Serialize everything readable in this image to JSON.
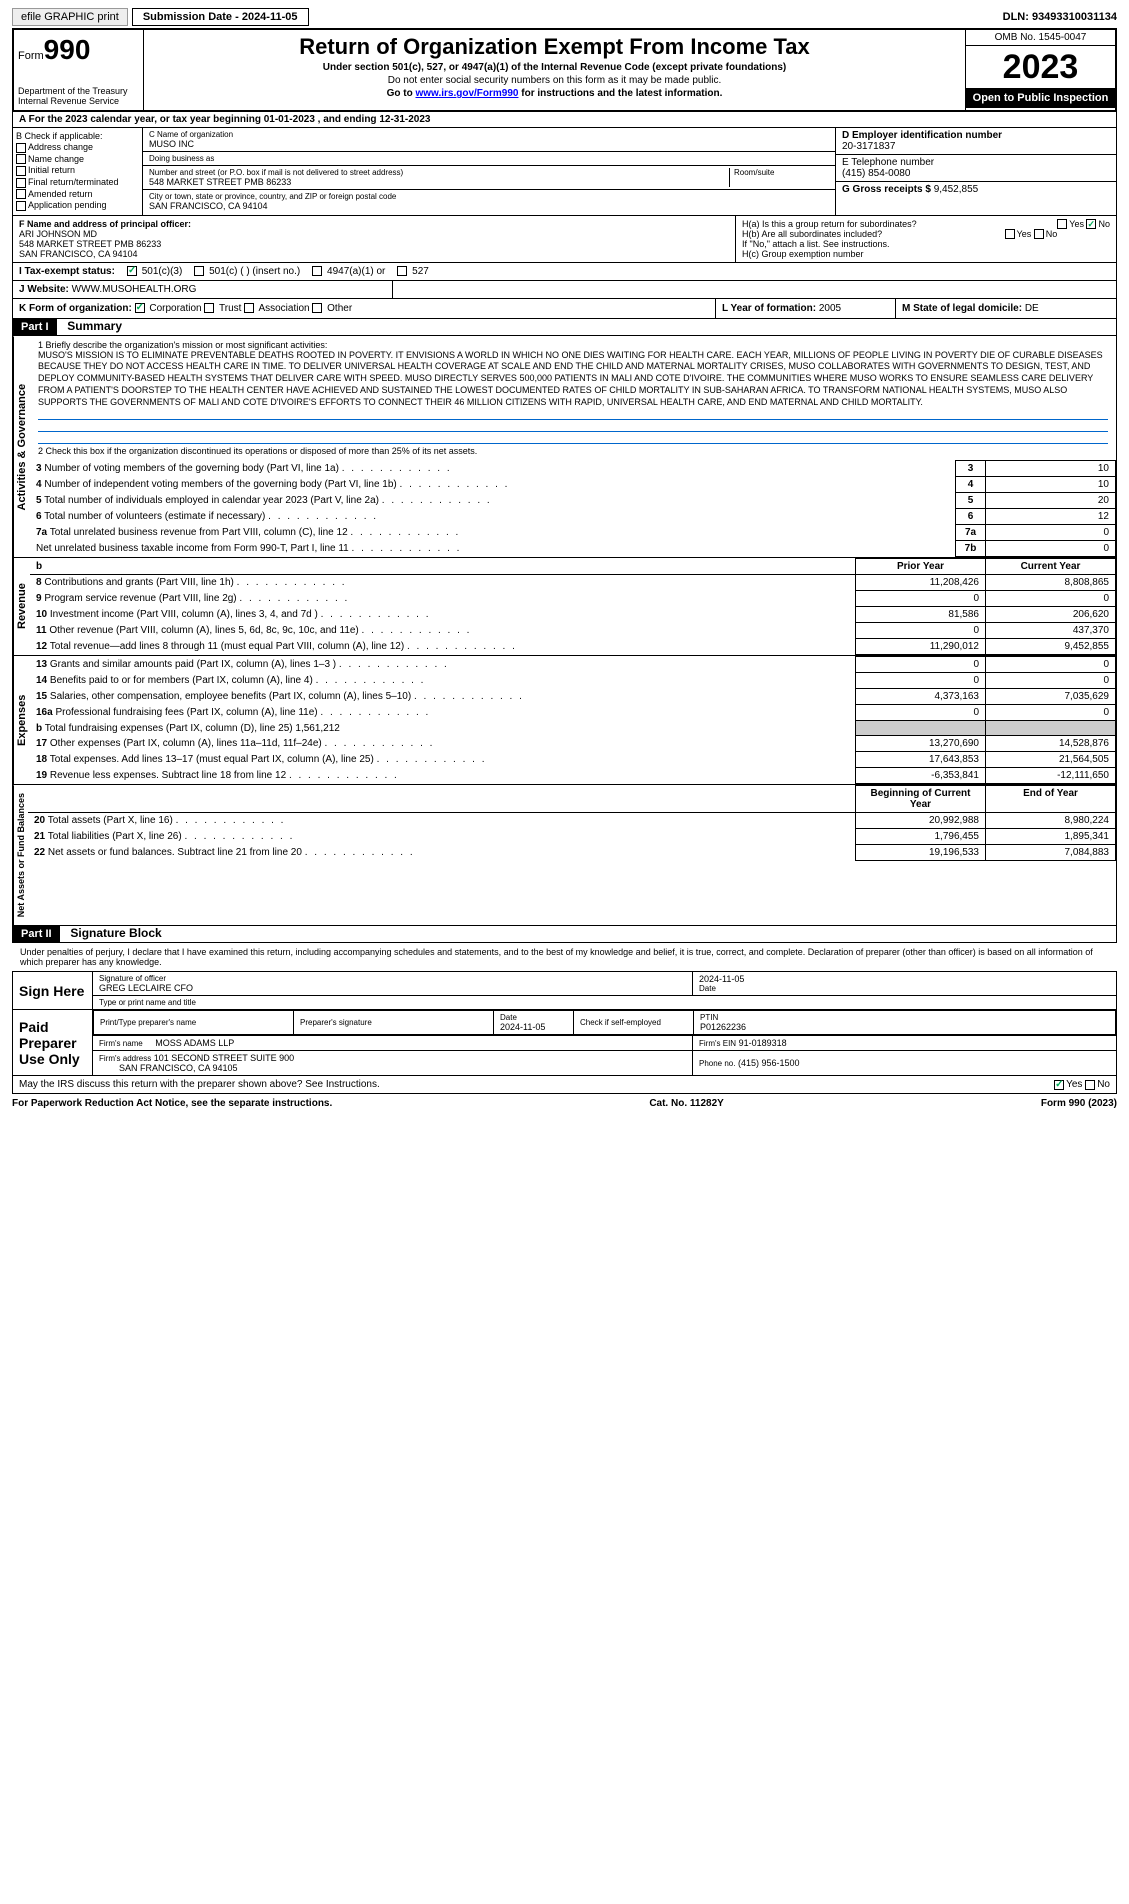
{
  "topbar": {
    "print_label": "efile GRAPHIC print",
    "submission": "Submission Date - 2024-11-05",
    "dln": "DLN: 93493310031134"
  },
  "header": {
    "form_prefix": "Form",
    "form_number": "990",
    "dept": "Department of the Treasury Internal Revenue Service",
    "title": "Return of Organization Exempt From Income Tax",
    "subtitle": "Under section 501(c), 527, or 4947(a)(1) of the Internal Revenue Code (except private foundations)",
    "note1": "Do not enter social security numbers on this form as it may be made public.",
    "note2_prefix": "Go to ",
    "note2_link": "www.irs.gov/Form990",
    "note2_suffix": " for instructions and the latest information.",
    "omb": "OMB No. 1545-0047",
    "year": "2023",
    "open_pub": "Open to Public Inspection"
  },
  "cal_year": "A For the 2023 calendar year, or tax year beginning 01-01-2023   , and ending 12-31-2023",
  "box_b": {
    "title": "B Check if applicable:",
    "items": [
      "Address change",
      "Name change",
      "Initial return",
      "Final return/terminated",
      "Amended return",
      "Application pending"
    ]
  },
  "box_c": {
    "name_lbl": "C Name of organization",
    "name": "MUSO INC",
    "dba_lbl": "Doing business as",
    "dba": "",
    "street_lbl": "Number and street (or P.O. box if mail is not delivered to street address)",
    "street": "548 MARKET STREET PMB 86233",
    "room_lbl": "Room/suite",
    "city_lbl": "City or town, state or province, country, and ZIP or foreign postal code",
    "city": "SAN FRANCISCO, CA  94104"
  },
  "box_d": {
    "lbl": "D Employer identification number",
    "val": "20-3171837"
  },
  "box_e": {
    "lbl": "E Telephone number",
    "val": "(415) 854-0080"
  },
  "box_g": {
    "lbl": "G Gross receipts $",
    "val": "9,452,855"
  },
  "officer": {
    "lbl": "F Name and address of principal officer:",
    "name": "ARI JOHNSON MD",
    "addr1": "548 MARKET STREET PMB 86233",
    "addr2": "SAN FRANCISCO, CA  94104"
  },
  "box_h": {
    "h_a": "H(a) Is this a group return for subordinates?",
    "h_b": "H(b) Are all subordinates included?",
    "h_note": "If \"No,\" attach a list. See instructions.",
    "h_c": "H(c) Group exemption number"
  },
  "tax_status": {
    "lbl": "I   Tax-exempt status:",
    "opts": [
      "501(c)(3)",
      "501(c) (  ) (insert no.)",
      "4947(a)(1) or",
      "527"
    ]
  },
  "website": {
    "lbl": "J   Website:",
    "val": "WWW.MUSOHEALTH.ORG"
  },
  "form_org": {
    "lbl": "K Form of organization:",
    "opts": [
      "Corporation",
      "Trust",
      "Association",
      "Other"
    ],
    "year_lbl": "L Year of formation:",
    "year_val": "2005",
    "state_lbl": "M State of legal domicile:",
    "state_val": "DE"
  },
  "part1": {
    "hdr": "Part I",
    "title": "Summary",
    "line1_lbl": "1   Briefly describe the organization's mission or most significant activities:",
    "mission": "MUSO'S MISSION IS TO ELIMINATE PREVENTABLE DEATHS ROOTED IN POVERTY. IT ENVISIONS A WORLD IN WHICH NO ONE DIES WAITING FOR HEALTH CARE. EACH YEAR, MILLIONS OF PEOPLE LIVING IN POVERTY DIE OF CURABLE DISEASES BECAUSE THEY DO NOT ACCESS HEALTH CARE IN TIME. TO DELIVER UNIVERSAL HEALTH COVERAGE AT SCALE AND END THE CHILD AND MATERNAL MORTALITY CRISES, MUSO COLLABORATES WITH GOVERNMENTS TO DESIGN, TEST, AND DEPLOY COMMUNITY-BASED HEALTH SYSTEMS THAT DELIVER CARE WITH SPEED. MUSO DIRECTLY SERVES 500,000 PATIENTS IN MALI AND COTE D'IVOIRE. THE COMMUNITIES WHERE MUSO WORKS TO ENSURE SEAMLESS CARE DELIVERY FROM A PATIENT'S DOORSTEP TO THE HEALTH CENTER HAVE ACHIEVED AND SUSTAINED THE LOWEST DOCUMENTED RATES OF CHILD MORTALITY IN SUB-SAHARAN AFRICA. TO TRANSFORM NATIONAL HEALTH SYSTEMS, MUSO ALSO SUPPORTS THE GOVERNMENTS OF MALI AND COTE D'IVOIRE'S EFFORTS TO CONNECT THEIR 46 MILLION CITIZENS WITH RAPID, UNIVERSAL HEALTH CARE, AND END MATERNAL AND CHILD MORTALITY.",
    "line2": "2   Check this box      if the organization discontinued its operations or disposed of more than 25% of its net assets.",
    "vert1": "Activities & Governance",
    "vert2": "Revenue",
    "vert3": "Expenses",
    "vert4": "Net Assets or Fund Balances",
    "rows_gov": [
      {
        "n": "3",
        "d": "Number of voting members of the governing body (Part VI, line 1a)",
        "c": "3",
        "v": "10"
      },
      {
        "n": "4",
        "d": "Number of independent voting members of the governing body (Part VI, line 1b)",
        "c": "4",
        "v": "10"
      },
      {
        "n": "5",
        "d": "Total number of individuals employed in calendar year 2023 (Part V, line 2a)",
        "c": "5",
        "v": "20"
      },
      {
        "n": "6",
        "d": "Total number of volunteers (estimate if necessary)",
        "c": "6",
        "v": "12"
      },
      {
        "n": "7a",
        "d": "Total unrelated business revenue from Part VIII, column (C), line 12",
        "c": "7a",
        "v": "0"
      },
      {
        "n": "",
        "d": "Net unrelated business taxable income from Form 990-T, Part I, line 11",
        "c": "7b",
        "v": "0"
      }
    ],
    "hdr_prior": "Prior Year",
    "hdr_current": "Current Year",
    "rows_rev": [
      {
        "n": "8",
        "d": "Contributions and grants (Part VIII, line 1h)",
        "p": "11,208,426",
        "c": "8,808,865"
      },
      {
        "n": "9",
        "d": "Program service revenue (Part VIII, line 2g)",
        "p": "0",
        "c": "0"
      },
      {
        "n": "10",
        "d": "Investment income (Part VIII, column (A), lines 3, 4, and 7d )",
        "p": "81,586",
        "c": "206,620"
      },
      {
        "n": "11",
        "d": "Other revenue (Part VIII, column (A), lines 5, 6d, 8c, 9c, 10c, and 11e)",
        "p": "0",
        "c": "437,370"
      },
      {
        "n": "12",
        "d": "Total revenue—add lines 8 through 11 (must equal Part VIII, column (A), line 12)",
        "p": "11,290,012",
        "c": "9,452,855"
      }
    ],
    "rows_exp": [
      {
        "n": "13",
        "d": "Grants and similar amounts paid (Part IX, column (A), lines 1–3 )",
        "p": "0",
        "c": "0"
      },
      {
        "n": "14",
        "d": "Benefits paid to or for members (Part IX, column (A), line 4)",
        "p": "0",
        "c": "0"
      },
      {
        "n": "15",
        "d": "Salaries, other compensation, employee benefits (Part IX, column (A), lines 5–10)",
        "p": "4,373,163",
        "c": "7,035,629"
      },
      {
        "n": "16a",
        "d": "Professional fundraising fees (Part IX, column (A), line 11e)",
        "p": "0",
        "c": "0"
      },
      {
        "n": "b",
        "d": "Total fundraising expenses (Part IX, column (D), line 25) 1,561,212",
        "p": "",
        "c": "",
        "shade": true
      },
      {
        "n": "17",
        "d": "Other expenses (Part IX, column (A), lines 11a–11d, 11f–24e)",
        "p": "13,270,690",
        "c": "14,528,876"
      },
      {
        "n": "18",
        "d": "Total expenses. Add lines 13–17 (must equal Part IX, column (A), line 25)",
        "p": "17,643,853",
        "c": "21,564,505"
      },
      {
        "n": "19",
        "d": "Revenue less expenses. Subtract line 18 from line 12",
        "p": "-6,353,841",
        "c": "-12,111,650"
      }
    ],
    "hdr_begin": "Beginning of Current Year",
    "hdr_end": "End of Year",
    "rows_net": [
      {
        "n": "20",
        "d": "Total assets (Part X, line 16)",
        "p": "20,992,988",
        "c": "8,980,224"
      },
      {
        "n": "21",
        "d": "Total liabilities (Part X, line 26)",
        "p": "1,796,455",
        "c": "1,895,341"
      },
      {
        "n": "22",
        "d": "Net assets or fund balances. Subtract line 21 from line 20",
        "p": "19,196,533",
        "c": "7,084,883"
      }
    ]
  },
  "part2": {
    "hdr": "Part II",
    "title": "Signature Block",
    "decl": "Under penalties of perjury, I declare that I have examined this return, including accompanying schedules and statements, and to the best of my knowledge and belief, it is true, correct, and complete. Declaration of preparer (other than officer) is based on all information of which preparer has any knowledge.",
    "sign_here": "Sign Here",
    "sig_officer_lbl": "Signature of officer",
    "sig_date": "2024-11-05",
    "officer_name": "GREG LECLAIRE CFO",
    "type_lbl": "Type or print name and title",
    "paid_prep": "Paid Preparer Use Only",
    "prep_name_lbl": "Print/Type preparer's name",
    "prep_sig_lbl": "Preparer's signature",
    "prep_date_lbl": "Date",
    "prep_date": "2024-11-05",
    "self_emp": "Check       if self-employed",
    "ptin_lbl": "PTIN",
    "ptin": "P01262236",
    "firm_name_lbl": "Firm's name",
    "firm_name": "MOSS ADAMS LLP",
    "firm_ein_lbl": "Firm's EIN",
    "firm_ein": "91-0189318",
    "firm_addr_lbl": "Firm's address",
    "firm_addr": "101 SECOND STREET SUITE 900",
    "firm_city": "SAN FRANCISCO, CA  94105",
    "firm_phone_lbl": "Phone no.",
    "firm_phone": "(415) 956-1500",
    "discuss": "May the IRS discuss this return with the preparer shown above? See Instructions."
  },
  "footer": {
    "left": "For Paperwork Reduction Act Notice, see the separate instructions.",
    "mid": "Cat. No. 11282Y",
    "right": "Form 990 (2023)"
  }
}
